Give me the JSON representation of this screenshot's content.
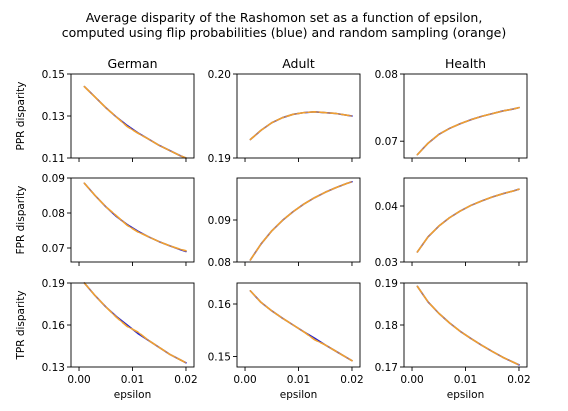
{
  "figure": {
    "title_line1": "Average disparity of the Rashomon set as a function of epsilon,",
    "title_line2": "computed using flip probabilities (blue) and random sampling (orange)"
  },
  "colors": {
    "flip_probabilities": "#1f1fd0",
    "random_sampling": "#f0a030",
    "axes": "#000000",
    "background": "#ffffff"
  },
  "chart_data": [
    {
      "type": "line",
      "title": "German",
      "ylabel": "PPR disparity",
      "xlabel": "",
      "xlim": [
        -0.0015,
        0.0215
      ],
      "ylim": [
        0.11,
        0.15
      ],
      "xticks": [
        "0.00",
        "0.01",
        "0.02"
      ],
      "yticks": [
        "0.11",
        "0.13",
        "0.15"
      ],
      "ytick_values": [
        0.11,
        0.13,
        0.15
      ],
      "series": [
        {
          "name": "flip probabilities (blue)",
          "x": [
            0.001,
            0.003,
            0.005,
            0.007,
            0.009,
            0.011,
            0.013,
            0.015,
            0.017,
            0.019,
            0.02
          ],
          "values": [
            0.144,
            0.139,
            0.134,
            0.1295,
            0.1255,
            0.122,
            0.119,
            0.116,
            0.1135,
            0.111,
            0.11
          ]
        },
        {
          "name": "random sampling (orange)",
          "x": [
            0.001,
            0.003,
            0.005,
            0.007,
            0.009,
            0.011,
            0.013,
            0.015,
            0.017,
            0.019,
            0.02
          ],
          "values": [
            0.144,
            0.139,
            0.134,
            0.1295,
            0.125,
            0.1218,
            0.119,
            0.116,
            0.1135,
            0.111,
            0.11
          ]
        }
      ]
    },
    {
      "type": "line",
      "title": "Adult",
      "ylabel": "",
      "xlabel": "",
      "xlim": [
        -0.0015,
        0.0215
      ],
      "ylim": [
        0.19,
        0.2
      ],
      "xticks": [
        "0.00",
        "0.01",
        "0.02"
      ],
      "yticks": [
        "0.19",
        "0.20"
      ],
      "ytick_values": [
        0.19,
        0.2
      ],
      "series": [
        {
          "name": "flip probabilities (blue)",
          "x": [
            0.001,
            0.003,
            0.005,
            0.007,
            0.009,
            0.011,
            0.013,
            0.015,
            0.017,
            0.019,
            0.02
          ],
          "values": [
            0.1922,
            0.1933,
            0.1942,
            0.1948,
            0.1952,
            0.1954,
            0.1955,
            0.1954,
            0.1953,
            0.1951,
            0.195
          ]
        },
        {
          "name": "random sampling (orange)",
          "x": [
            0.001,
            0.003,
            0.005,
            0.007,
            0.009,
            0.011,
            0.013,
            0.015,
            0.017,
            0.019,
            0.02
          ],
          "values": [
            0.1922,
            0.1933,
            0.1942,
            0.1948,
            0.1952,
            0.1954,
            0.1955,
            0.1954,
            0.1953,
            0.1951,
            0.195
          ]
        }
      ]
    },
    {
      "type": "line",
      "title": "Health",
      "ylabel": "",
      "xlabel": "",
      "xlim": [
        -0.0015,
        0.0215
      ],
      "ylim": [
        0.0675,
        0.08
      ],
      "xticks": [
        "0.00",
        "0.01",
        "0.02"
      ],
      "yticks": [
        "0.07",
        "0.08"
      ],
      "ytick_values": [
        0.07,
        0.08
      ],
      "series": [
        {
          "name": "flip probabilities (blue)",
          "x": [
            0.001,
            0.003,
            0.005,
            0.007,
            0.009,
            0.011,
            0.013,
            0.015,
            0.017,
            0.019,
            0.02
          ],
          "values": [
            0.068,
            0.0697,
            0.071,
            0.0719,
            0.0726,
            0.0732,
            0.0737,
            0.0741,
            0.0745,
            0.0748,
            0.075
          ]
        },
        {
          "name": "random sampling (orange)",
          "x": [
            0.001,
            0.003,
            0.005,
            0.007,
            0.009,
            0.011,
            0.013,
            0.015,
            0.017,
            0.019,
            0.02
          ],
          "values": [
            0.068,
            0.0697,
            0.071,
            0.0719,
            0.0726,
            0.0732,
            0.0737,
            0.0741,
            0.0745,
            0.0748,
            0.075
          ]
        }
      ]
    },
    {
      "type": "line",
      "title": "",
      "ylabel": "FPR disparity",
      "xlabel": "",
      "xlim": [
        -0.0015,
        0.0215
      ],
      "ylim": [
        0.066,
        0.09
      ],
      "xticks": [
        "0.00",
        "0.01",
        "0.02"
      ],
      "yticks": [
        "0.07",
        "0.08",
        "0.09"
      ],
      "ytick_values": [
        0.07,
        0.08,
        0.09
      ],
      "series": [
        {
          "name": "flip probabilities (blue)",
          "x": [
            0.001,
            0.003,
            0.005,
            0.007,
            0.009,
            0.011,
            0.013,
            0.015,
            0.017,
            0.019,
            0.02
          ],
          "values": [
            0.0885,
            0.085,
            0.0818,
            0.079,
            0.0767,
            0.0748,
            0.0732,
            0.0718,
            0.0706,
            0.0695,
            0.069
          ]
        },
        {
          "name": "random sampling (orange)",
          "x": [
            0.001,
            0.003,
            0.005,
            0.007,
            0.009,
            0.011,
            0.013,
            0.015,
            0.017,
            0.019,
            0.02
          ],
          "values": [
            0.0885,
            0.085,
            0.0818,
            0.0792,
            0.0765,
            0.0746,
            0.0732,
            0.0718,
            0.0706,
            0.0696,
            0.0692
          ]
        }
      ]
    },
    {
      "type": "line",
      "title": "",
      "ylabel": "",
      "xlabel": "",
      "xlim": [
        -0.0015,
        0.0215
      ],
      "ylim": [
        0.08,
        0.1
      ],
      "xticks": [
        "0.00",
        "0.01",
        "0.02"
      ],
      "yticks": [
        "0.08",
        "0.09"
      ],
      "ytick_values": [
        0.08,
        0.09
      ],
      "series": [
        {
          "name": "flip probabilities (blue)",
          "x": [
            0.001,
            0.003,
            0.005,
            0.007,
            0.009,
            0.011,
            0.013,
            0.015,
            0.017,
            0.019,
            0.02
          ],
          "values": [
            0.0805,
            0.0843,
            0.0874,
            0.0899,
            0.092,
            0.0938,
            0.0953,
            0.0966,
            0.0977,
            0.0987,
            0.0991
          ]
        },
        {
          "name": "random sampling (orange)",
          "x": [
            0.001,
            0.003,
            0.005,
            0.007,
            0.009,
            0.011,
            0.013,
            0.015,
            0.017,
            0.019,
            0.02
          ],
          "values": [
            0.0805,
            0.0843,
            0.0874,
            0.0899,
            0.092,
            0.0938,
            0.0953,
            0.0966,
            0.0977,
            0.0987,
            0.0991
          ]
        }
      ]
    },
    {
      "type": "line",
      "title": "",
      "ylabel": "",
      "xlabel": "",
      "xlim": [
        -0.0015,
        0.0215
      ],
      "ylim": [
        0.03,
        0.045
      ],
      "xticks": [
        "0.00",
        "0.01",
        "0.02"
      ],
      "yticks": [
        "0.03",
        "0.04"
      ],
      "ytick_values": [
        0.03,
        0.04
      ],
      "series": [
        {
          "name": "flip probabilities (blue)",
          "x": [
            0.001,
            0.003,
            0.005,
            0.007,
            0.009,
            0.011,
            0.013,
            0.015,
            0.017,
            0.019,
            0.02
          ],
          "values": [
            0.0318,
            0.0345,
            0.0364,
            0.0379,
            0.0391,
            0.0401,
            0.0409,
            0.0416,
            0.0422,
            0.0427,
            0.043
          ]
        },
        {
          "name": "random sampling (orange)",
          "x": [
            0.001,
            0.003,
            0.005,
            0.007,
            0.009,
            0.011,
            0.013,
            0.015,
            0.017,
            0.019,
            0.02
          ],
          "values": [
            0.0318,
            0.0345,
            0.0364,
            0.0379,
            0.0391,
            0.0401,
            0.0409,
            0.0416,
            0.0422,
            0.0427,
            0.043
          ]
        }
      ]
    },
    {
      "type": "line",
      "title": "",
      "ylabel": "TPR disparity",
      "xlabel": "epsilon",
      "xlim": [
        -0.0015,
        0.0215
      ],
      "ylim": [
        0.13,
        0.19
      ],
      "xticks": [
        "0.00",
        "0.01",
        "0.02"
      ],
      "yticks": [
        "0.13",
        "0.16",
        "0.19"
      ],
      "ytick_values": [
        0.13,
        0.16,
        0.19
      ],
      "series": [
        {
          "name": "flip probabilities (blue)",
          "x": [
            0.001,
            0.003,
            0.005,
            0.007,
            0.009,
            0.011,
            0.013,
            0.015,
            0.017,
            0.019,
            0.02
          ],
          "values": [
            0.19,
            0.181,
            0.173,
            0.166,
            0.16,
            0.154,
            0.149,
            0.144,
            0.139,
            0.135,
            0.133
          ]
        },
        {
          "name": "random sampling (orange)",
          "x": [
            0.001,
            0.003,
            0.005,
            0.007,
            0.009,
            0.011,
            0.013,
            0.015,
            0.017,
            0.019,
            0.02
          ],
          "values": [
            0.19,
            0.181,
            0.173,
            0.1655,
            0.159,
            0.155,
            0.149,
            0.144,
            0.139,
            0.135,
            0.133
          ]
        }
      ]
    },
    {
      "type": "line",
      "title": "",
      "ylabel": "",
      "xlabel": "epsilon",
      "xlim": [
        -0.0015,
        0.0215
      ],
      "ylim": [
        0.148,
        0.164
      ],
      "xticks": [
        "0.00",
        "0.01",
        "0.02"
      ],
      "yticks": [
        "0.15",
        "0.16"
      ],
      "ytick_values": [
        0.15,
        0.16
      ],
      "series": [
        {
          "name": "flip probabilities (blue)",
          "x": [
            0.001,
            0.003,
            0.005,
            0.007,
            0.009,
            0.011,
            0.013,
            0.015,
            0.017,
            0.019,
            0.02
          ],
          "values": [
            0.1625,
            0.1603,
            0.1587,
            0.1573,
            0.156,
            0.1547,
            0.1535,
            0.1522,
            0.151,
            0.1498,
            0.1492
          ]
        },
        {
          "name": "random sampling (orange)",
          "x": [
            0.001,
            0.003,
            0.005,
            0.007,
            0.009,
            0.011,
            0.013,
            0.015,
            0.017,
            0.019,
            0.02
          ],
          "values": [
            0.1625,
            0.1603,
            0.1587,
            0.1573,
            0.156,
            0.1547,
            0.1532,
            0.1522,
            0.151,
            0.1498,
            0.1492
          ]
        }
      ]
    },
    {
      "type": "line",
      "title": "",
      "ylabel": "",
      "xlabel": "epsilon",
      "xlim": [
        -0.0015,
        0.0215
      ],
      "ylim": [
        0.17,
        0.19
      ],
      "xticks": [
        "0.00",
        "0.01",
        "0.02"
      ],
      "yticks": [
        "0.17",
        "0.18",
        "0.19"
      ],
      "ytick_values": [
        0.17,
        0.18,
        0.19
      ],
      "series": [
        {
          "name": "flip probabilities (blue)",
          "x": [
            0.001,
            0.003,
            0.005,
            0.007,
            0.009,
            0.011,
            0.013,
            0.015,
            0.017,
            0.019,
            0.02
          ],
          "values": [
            0.1892,
            0.1855,
            0.1828,
            0.1805,
            0.1785,
            0.1768,
            0.1752,
            0.1737,
            0.1723,
            0.1711,
            0.1705
          ]
        },
        {
          "name": "random sampling (orange)",
          "x": [
            0.001,
            0.003,
            0.005,
            0.007,
            0.009,
            0.011,
            0.013,
            0.015,
            0.017,
            0.019,
            0.02
          ],
          "values": [
            0.1892,
            0.1855,
            0.1828,
            0.1805,
            0.1785,
            0.1768,
            0.1752,
            0.1737,
            0.1723,
            0.1711,
            0.1705
          ]
        }
      ]
    }
  ]
}
